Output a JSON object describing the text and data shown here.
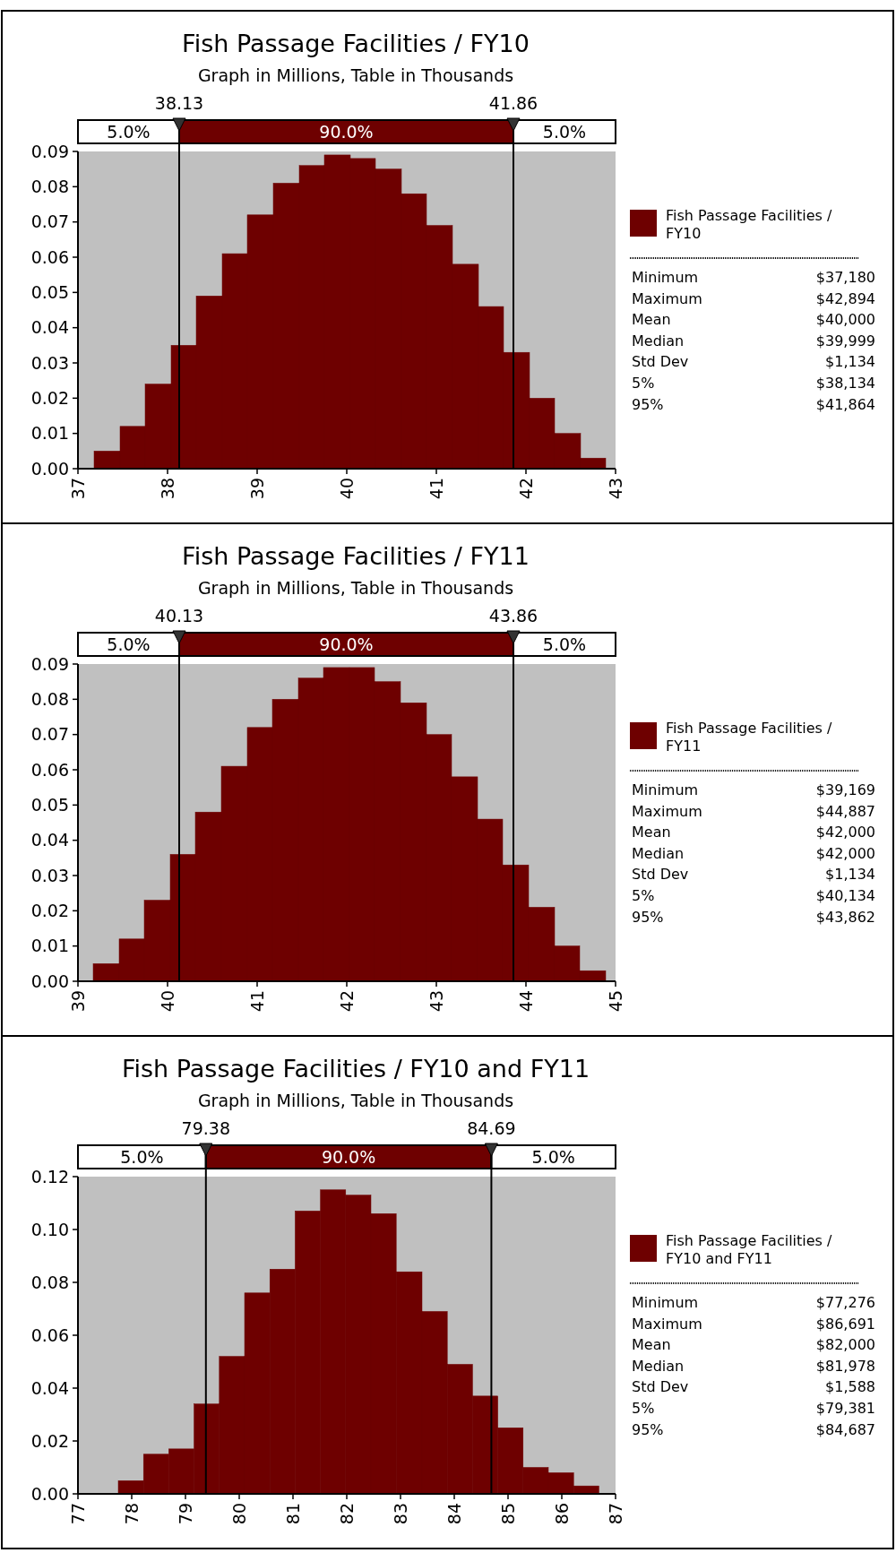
{
  "chart_data": [
    {
      "type": "histogram",
      "title": "Fish Passage Facilities / FY10",
      "subtitle": "Graph in Millions, Table in Thousands",
      "bins": [
        37.18,
        37.47,
        37.75,
        38.04,
        38.32,
        38.61,
        38.89,
        39.18,
        39.47,
        39.75,
        40.04,
        40.32,
        40.61,
        40.89,
        41.18,
        41.47,
        41.75,
        42.04,
        42.32,
        42.61,
        42.89
      ],
      "series": [
        {
          "name": "Fish Passage Facilities / FY10",
          "color": "#6e0000",
          "values": [
            0.005,
            0.012,
            0.024,
            0.035,
            0.049,
            0.061,
            0.072,
            0.081,
            0.086,
            0.089,
            0.088,
            0.085,
            0.078,
            0.069,
            0.058,
            0.046,
            0.033,
            0.02,
            0.01,
            0.003
          ]
        }
      ],
      "xlim": [
        37,
        43
      ],
      "xticks": [
        37,
        38,
        39,
        40,
        41,
        42,
        43
      ],
      "ylim": [
        0,
        0.09
      ],
      "yticks": [
        {
          "value": 0,
          "label": "0.00"
        },
        {
          "value": 0.01,
          "label": "0.01"
        },
        {
          "value": 0.02,
          "label": "0.02"
        },
        {
          "value": 0.03,
          "label": "0.03"
        },
        {
          "value": 0.04,
          "label": "0.04"
        },
        {
          "value": 0.05,
          "label": "0.05"
        },
        {
          "value": 0.06,
          "label": "0.06"
        },
        {
          "value": 0.07,
          "label": "0.07"
        },
        {
          "value": 0.08,
          "label": "0.08"
        },
        {
          "value": 0.09,
          "label": "0.09"
        }
      ],
      "ref_lines": [
        {
          "axis": "x",
          "value": 38.13,
          "label": "38.13",
          "color": "#000000"
        },
        {
          "axis": "x",
          "value": 41.86,
          "label": "41.86",
          "color": "#000000"
        }
      ],
      "annotations": [
        "5.0%",
        "90.0%",
        "5.0%",
        "Minimum",
        "$37,180",
        "Maximum",
        "$42,894",
        "Mean",
        "$40,000",
        "Median",
        "$39,999",
        "Std Dev",
        "$1,134",
        "5%",
        "$38,134",
        "95%",
        "$41,864"
      ],
      "legend": "right",
      "grid": false
    },
    {
      "type": "histogram",
      "title": "Fish Passage Facilities / FY11",
      "subtitle": "Graph in Millions, Table in Thousands",
      "bins": [
        39.17,
        39.46,
        39.74,
        40.03,
        40.31,
        40.6,
        40.89,
        41.17,
        41.46,
        41.74,
        42.03,
        42.31,
        42.6,
        42.89,
        43.17,
        43.46,
        43.74,
        44.03,
        44.32,
        44.6,
        44.89
      ],
      "series": [
        {
          "name": "Fish Passage Facilities / FY11",
          "color": "#6e0000",
          "values": [
            0.005,
            0.012,
            0.023,
            0.036,
            0.048,
            0.061,
            0.072,
            0.08,
            0.086,
            0.089,
            0.089,
            0.085,
            0.079,
            0.07,
            0.058,
            0.046,
            0.033,
            0.021,
            0.01,
            0.003
          ]
        }
      ],
      "xlim": [
        39,
        45
      ],
      "xticks": [
        39,
        40,
        41,
        42,
        43,
        44,
        45
      ],
      "ylim": [
        0,
        0.09
      ],
      "yticks": [
        {
          "value": 0,
          "label": "0.00"
        },
        {
          "value": 0.01,
          "label": "0.01"
        },
        {
          "value": 0.02,
          "label": "0.02"
        },
        {
          "value": 0.03,
          "label": "0.03"
        },
        {
          "value": 0.04,
          "label": "0.04"
        },
        {
          "value": 0.05,
          "label": "0.05"
        },
        {
          "value": 0.06,
          "label": "0.06"
        },
        {
          "value": 0.07,
          "label": "0.07"
        },
        {
          "value": 0.08,
          "label": "0.08"
        },
        {
          "value": 0.09,
          "label": "0.09"
        }
      ],
      "ref_lines": [
        {
          "axis": "x",
          "value": 40.13,
          "label": "40.13",
          "color": "#000000"
        },
        {
          "axis": "x",
          "value": 43.86,
          "label": "43.86",
          "color": "#000000"
        }
      ],
      "annotations": [
        "5.0%",
        "90.0%",
        "5.0%",
        "Minimum",
        "$39,169",
        "Maximum",
        "$44,887",
        "Mean",
        "$42,000",
        "Median",
        "$42,000",
        "Std Dev",
        "$1,134",
        "5%",
        "$40,134",
        "95%",
        "$43,862"
      ],
      "legend": "right",
      "grid": false
    },
    {
      "type": "histogram",
      "title": "Fish Passage Facilities / FY10 and FY11",
      "subtitle": "Graph in Millions, Table in Thousands",
      "bins": [
        77.75,
        78.22,
        78.69,
        79.16,
        79.63,
        80.1,
        80.57,
        81.04,
        81.51,
        81.98,
        82.45,
        82.92,
        83.4,
        83.87,
        84.34,
        84.81,
        85.28,
        85.75,
        86.22,
        86.69
      ],
      "series": [
        {
          "name": "Fish Passage Facilities / FY10 and FY11",
          "color": "#6e0000",
          "values": [
            0.005,
            0.015,
            0.017,
            0.034,
            0.052,
            0.076,
            0.085,
            0.107,
            0.115,
            0.113,
            0.106,
            0.084,
            0.069,
            0.049,
            0.037,
            0.025,
            0.01,
            0.008,
            0.003
          ]
        }
      ],
      "xlim": [
        77,
        87
      ],
      "xticks": [
        77,
        78,
        79,
        80,
        81,
        82,
        83,
        84,
        85,
        86,
        87
      ],
      "ylim": [
        0,
        0.12
      ],
      "yticks": [
        {
          "value": 0,
          "label": "0.00"
        },
        {
          "value": 0.02,
          "label": "0.02"
        },
        {
          "value": 0.04,
          "label": "0.04"
        },
        {
          "value": 0.06,
          "label": "0.06"
        },
        {
          "value": 0.08,
          "label": "0.08"
        },
        {
          "value": 0.1,
          "label": "0.10"
        },
        {
          "value": 0.12,
          "label": "0.12"
        }
      ],
      "ref_lines": [
        {
          "axis": "x",
          "value": 79.38,
          "label": "79.38",
          "color": "#000000"
        },
        {
          "axis": "x",
          "value": 84.69,
          "label": "84.69",
          "color": "#000000"
        }
      ],
      "annotations": [
        "5.0%",
        "90.0%",
        "5.0%",
        "Minimum",
        "$77,276",
        "Maximum",
        "$86,691",
        "Mean",
        "$82,000",
        "Median",
        "$81,978",
        "Std Dev",
        "$1,588",
        "5%",
        "$79,381",
        "95%",
        "$84,687"
      ],
      "legend": "right",
      "grid": false
    }
  ]
}
